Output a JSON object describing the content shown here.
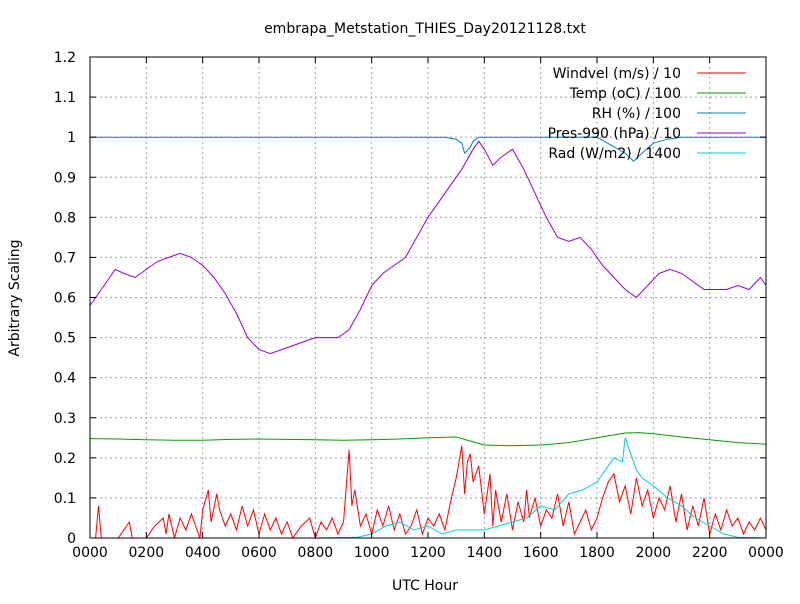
{
  "chart_data": {
    "type": "line",
    "title": "embrapa_Metstation_THIES_Day20121128.txt",
    "xlabel": "UTC Hour",
    "ylabel": "Arbitrary Scaling",
    "xlim": [
      0,
      24
    ],
    "ylim": [
      0,
      1.2
    ],
    "x_unit_note": "hours",
    "x_ticks": [
      {
        "v": 0,
        "label": "0000"
      },
      {
        "v": 2,
        "label": "0200"
      },
      {
        "v": 4,
        "label": "0400"
      },
      {
        "v": 6,
        "label": "0600"
      },
      {
        "v": 8,
        "label": "0800"
      },
      {
        "v": 10,
        "label": "1000"
      },
      {
        "v": 12,
        "label": "1200"
      },
      {
        "v": 14,
        "label": "1400"
      },
      {
        "v": 16,
        "label": "1600"
      },
      {
        "v": 18,
        "label": "1800"
      },
      {
        "v": 20,
        "label": "2000"
      },
      {
        "v": 22,
        "label": "2200"
      },
      {
        "v": 24,
        "label": "0000"
      }
    ],
    "y_ticks": [
      {
        "v": 0,
        "label": "0"
      },
      {
        "v": 0.1,
        "label": "0.1"
      },
      {
        "v": 0.2,
        "label": "0.2"
      },
      {
        "v": 0.3,
        "label": "0.3"
      },
      {
        "v": 0.4,
        "label": "0.4"
      },
      {
        "v": 0.5,
        "label": "0.5"
      },
      {
        "v": 0.6,
        "label": "0.6"
      },
      {
        "v": 0.7,
        "label": "0.7"
      },
      {
        "v": 0.8,
        "label": "0.8"
      },
      {
        "v": 0.9,
        "label": "0.9"
      },
      {
        "v": 1.0,
        "label": "1"
      },
      {
        "v": 1.1,
        "label": "1.1"
      },
      {
        "v": 1.2,
        "label": "1.2"
      }
    ],
    "grid": true,
    "legend_position": "top-right",
    "series": [
      {
        "name": "Windvel (m/s) / 10",
        "color": "#ff0000",
        "x": [
          0,
          0.2,
          0.3,
          0.4,
          0.5,
          0.8,
          1.0,
          1.4,
          1.5,
          1.8,
          2.0,
          2.3,
          2.6,
          2.7,
          2.8,
          3.0,
          3.2,
          3.4,
          3.6,
          3.9,
          4.0,
          4.2,
          4.3,
          4.5,
          4.6,
          4.8,
          5.0,
          5.2,
          5.4,
          5.6,
          5.8,
          6.0,
          6.2,
          6.4,
          6.6,
          6.8,
          7.0,
          7.2,
          7.5,
          7.8,
          8.0,
          8.2,
          8.4,
          8.6,
          8.8,
          9.0,
          9.2,
          9.3,
          9.4,
          9.6,
          9.8,
          10.0,
          10.2,
          10.4,
          10.6,
          10.8,
          11.0,
          11.2,
          11.4,
          11.6,
          11.8,
          12.0,
          12.2,
          12.4,
          12.6,
          12.8,
          13.0,
          13.2,
          13.3,
          13.4,
          13.5,
          13.6,
          13.8,
          14.0,
          14.2,
          14.3,
          14.4,
          14.6,
          14.8,
          15.0,
          15.2,
          15.4,
          15.5,
          15.6,
          15.8,
          16.0,
          16.2,
          16.4,
          16.6,
          16.8,
          17.0,
          17.2,
          17.4,
          17.6,
          17.8,
          18.0,
          18.2,
          18.4,
          18.6,
          18.8,
          19.0,
          19.2,
          19.4,
          19.6,
          19.8,
          20.0,
          20.2,
          20.4,
          20.6,
          20.8,
          21.0,
          21.2,
          21.4,
          21.6,
          21.8,
          22.0,
          22.2,
          22.4,
          22.6,
          22.8,
          23.0,
          23.2,
          23.4,
          23.6,
          23.8,
          24.0
        ],
        "y": [
          0,
          0,
          0.08,
          0,
          0,
          0,
          0,
          0.04,
          0,
          0,
          0,
          0.03,
          0.05,
          0.01,
          0.06,
          0,
          0.05,
          0.02,
          0.06,
          0,
          0.07,
          0.12,
          0.04,
          0.11,
          0.07,
          0.03,
          0.06,
          0.02,
          0.08,
          0.03,
          0.07,
          0.01,
          0.06,
          0.02,
          0.05,
          0.01,
          0.04,
          0,
          0.03,
          0.05,
          0,
          0.04,
          0.02,
          0.05,
          0.01,
          0.04,
          0.22,
          0.08,
          0.12,
          0.03,
          0.06,
          0.01,
          0.07,
          0.03,
          0.08,
          0.02,
          0.06,
          0.01,
          0.03,
          0.07,
          0.01,
          0.05,
          0.03,
          0.06,
          0.02,
          0.09,
          0.15,
          0.23,
          0.11,
          0.19,
          0.21,
          0.14,
          0.18,
          0.06,
          0.16,
          0.03,
          0.12,
          0.04,
          0.11,
          0.02,
          0.09,
          0.04,
          0.12,
          0.05,
          0.1,
          0.03,
          0.07,
          0.05,
          0.11,
          0.03,
          0.09,
          0.01,
          0.04,
          0.07,
          0.02,
          0.05,
          0.1,
          0.14,
          0.16,
          0.09,
          0.13,
          0.06,
          0.15,
          0.08,
          0.12,
          0.05,
          0.1,
          0.07,
          0.13,
          0.04,
          0.11,
          0.02,
          0.08,
          0.03,
          0.1,
          0.01,
          0.06,
          0.02,
          0.07,
          0.03,
          0.05,
          0.01,
          0.04,
          0.02,
          0.05,
          0.02
        ]
      },
      {
        "name": "Temp (oC) / 100",
        "color": "#00a000",
        "x": [
          0,
          1,
          2,
          3,
          4,
          5,
          6,
          7,
          8,
          9,
          10,
          11,
          12,
          13,
          13.5,
          14,
          15,
          16,
          17,
          18,
          19,
          19.5,
          20,
          21,
          22,
          23,
          24
        ],
        "y": [
          0.248,
          0.247,
          0.245,
          0.244,
          0.244,
          0.246,
          0.247,
          0.246,
          0.245,
          0.244,
          0.245,
          0.247,
          0.25,
          0.252,
          0.242,
          0.232,
          0.23,
          0.232,
          0.238,
          0.25,
          0.262,
          0.263,
          0.26,
          0.252,
          0.245,
          0.238,
          0.234
        ]
      },
      {
        "name": "RH (%) / 100",
        "color": "#0080c0",
        "x": [
          0,
          4,
          8,
          12,
          12.6,
          13.0,
          13.2,
          13.3,
          13.5,
          13.6,
          13.8,
          14.0,
          16,
          17,
          18,
          18.5,
          19.0,
          19.3,
          19.6,
          20.0,
          20.5,
          21.0,
          22,
          23,
          24
        ],
        "y": [
          1,
          1,
          1,
          1,
          1,
          0.995,
          0.985,
          0.96,
          0.975,
          0.99,
          1,
          1,
          1,
          1,
          1,
          0.98,
          0.96,
          0.94,
          0.96,
          0.985,
          0.995,
          1,
          1,
          1,
          1
        ]
      },
      {
        "name": "Pres-990 (hPa) / 10",
        "color": "#9400d3",
        "x": [
          0,
          0.3,
          0.6,
          0.9,
          1.2,
          1.6,
          2.0,
          2.4,
          2.8,
          3.2,
          3.6,
          4.0,
          4.4,
          4.8,
          5.2,
          5.6,
          6.0,
          6.4,
          6.8,
          7.2,
          7.6,
          8.0,
          8.4,
          8.8,
          9.2,
          9.6,
          10.0,
          10.4,
          10.8,
          11.2,
          11.6,
          12.0,
          12.4,
          12.8,
          13.2,
          13.6,
          13.8,
          14.0,
          14.3,
          14.6,
          15.0,
          15.4,
          15.8,
          16.2,
          16.6,
          17.0,
          17.4,
          17.8,
          18.2,
          18.6,
          19.0,
          19.4,
          19.8,
          20.2,
          20.6,
          21.0,
          21.4,
          21.8,
          22.2,
          22.6,
          23.0,
          23.4,
          23.8,
          24.0
        ],
        "y": [
          0.58,
          0.61,
          0.64,
          0.67,
          0.66,
          0.65,
          0.67,
          0.69,
          0.7,
          0.71,
          0.7,
          0.68,
          0.65,
          0.61,
          0.56,
          0.5,
          0.47,
          0.46,
          0.47,
          0.48,
          0.49,
          0.5,
          0.5,
          0.5,
          0.52,
          0.57,
          0.63,
          0.66,
          0.68,
          0.7,
          0.75,
          0.8,
          0.84,
          0.88,
          0.92,
          0.97,
          0.99,
          0.97,
          0.93,
          0.95,
          0.97,
          0.92,
          0.86,
          0.8,
          0.75,
          0.74,
          0.75,
          0.72,
          0.68,
          0.65,
          0.62,
          0.6,
          0.63,
          0.66,
          0.67,
          0.66,
          0.64,
          0.62,
          0.62,
          0.62,
          0.63,
          0.62,
          0.65,
          0.63
        ]
      },
      {
        "name": "Rad (W/m2) / 1400",
        "color": "#00d0d0",
        "x": [
          0,
          4,
          8,
          9.5,
          10,
          10.5,
          11,
          11.5,
          12,
          12.5,
          13,
          13.5,
          14,
          14.5,
          15,
          15.5,
          16,
          16.5,
          17,
          17.5,
          18,
          18.3,
          18.6,
          18.9,
          19.0,
          19.2,
          19.4,
          19.6,
          20,
          20.5,
          21,
          21.5,
          22,
          22.5,
          23,
          24
        ],
        "y": [
          0,
          0,
          0,
          0.002,
          0.01,
          0.03,
          0.04,
          0.02,
          0.03,
          0.01,
          0.02,
          0.02,
          0.02,
          0.03,
          0.04,
          0.05,
          0.08,
          0.07,
          0.11,
          0.12,
          0.14,
          0.17,
          0.2,
          0.19,
          0.25,
          0.21,
          0.17,
          0.15,
          0.13,
          0.1,
          0.08,
          0.05,
          0.03,
          0.01,
          0.002,
          0
        ]
      }
    ]
  }
}
